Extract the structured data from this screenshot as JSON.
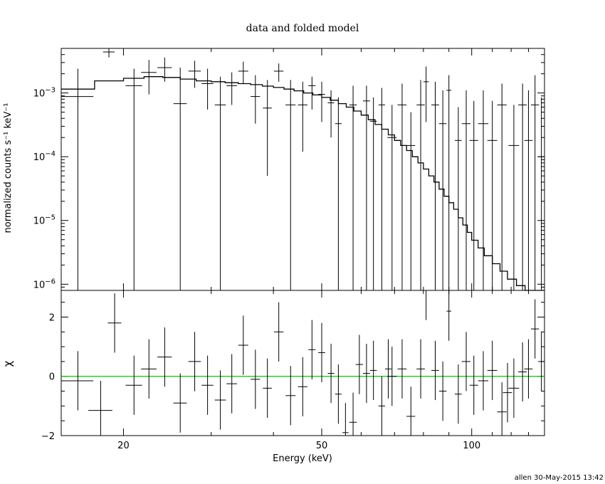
{
  "chart_data": [
    {
      "type": "line",
      "title": "data and folded model",
      "ylabel": "normalized counts s⁻¹ keV⁻¹",
      "xlabel": "",
      "xscale": "log",
      "yscale": "log",
      "xlim": [
        15,
        140
      ],
      "ylim": [
        8e-07,
        0.005
      ],
      "yticks": [
        {
          "value": 0.001,
          "base": "10",
          "exp": "−3"
        },
        {
          "value": 0.0001,
          "base": "10",
          "exp": "−4"
        },
        {
          "value": 1e-05,
          "base": "10",
          "exp": "−5"
        },
        {
          "value": 1e-06,
          "base": "10",
          "exp": "−6"
        }
      ],
      "model_steps": [
        [
          15.0,
          17.5,
          0.00115
        ],
        [
          17.5,
          20.0,
          0.00155
        ],
        [
          20.0,
          22.0,
          0.0017
        ],
        [
          22.0,
          24.0,
          0.0018
        ],
        [
          24.0,
          26.0,
          0.00175
        ],
        [
          26.0,
          28.0,
          0.00165
        ],
        [
          28.0,
          30.0,
          0.00155
        ],
        [
          30.0,
          32.0,
          0.0015
        ],
        [
          32.0,
          34.0,
          0.00145
        ],
        [
          34.0,
          36.0,
          0.0014
        ],
        [
          36.0,
          38.0,
          0.00135
        ],
        [
          38.0,
          40.0,
          0.00128
        ],
        [
          40.0,
          42.0,
          0.00122
        ],
        [
          42.0,
          44.0,
          0.00115
        ],
        [
          44.0,
          46.0,
          0.00108
        ],
        [
          46.0,
          48.0,
          0.001
        ],
        [
          48.0,
          50.0,
          0.00093
        ],
        [
          50.0,
          52.0,
          0.00085
        ],
        [
          52.0,
          54.0,
          0.00077
        ],
        [
          54.0,
          56.0,
          0.00068
        ],
        [
          56.0,
          58.0,
          0.0006
        ],
        [
          58.0,
          60.0,
          0.00052
        ],
        [
          60.0,
          62.0,
          0.00045
        ],
        [
          62.0,
          64.0,
          0.00038
        ],
        [
          64.0,
          66.0,
          0.00032
        ],
        [
          66.0,
          68.0,
          0.00027
        ],
        [
          68.0,
          70.0,
          0.00022
        ],
        [
          70.0,
          72.0,
          0.00018
        ],
        [
          72.0,
          74.0,
          0.00015
        ],
        [
          74.0,
          76.0,
          0.000125
        ],
        [
          76.0,
          78.0,
          0.0001
        ],
        [
          78.0,
          80.0,
          8e-05
        ],
        [
          80.0,
          82.0,
          6.4e-05
        ],
        [
          82.0,
          84.0,
          5e-05
        ],
        [
          84.0,
          86.0,
          4e-05
        ],
        [
          86.0,
          88.0,
          3.1e-05
        ],
        [
          88.0,
          90.0,
          2.4e-05
        ],
        [
          90.0,
          92.0,
          1.9e-05
        ],
        [
          92.0,
          94.0,
          1.5e-05
        ],
        [
          94.0,
          96.0,
          1.1e-05
        ],
        [
          96.0,
          98.0,
          8.5e-06
        ],
        [
          98.0,
          100.0,
          6.5e-06
        ],
        [
          100.0,
          103.0,
          4.9e-06
        ],
        [
          103.0,
          106.0,
          3.7e-06
        ],
        [
          106.0,
          110.0,
          2.8e-06
        ],
        [
          110.0,
          114.0,
          2.1e-06
        ],
        [
          114.0,
          118.0,
          1.6e-06
        ],
        [
          118.0,
          123.0,
          1.2e-06
        ],
        [
          123.0,
          128.0,
          9.5e-07
        ],
        [
          128.0,
          134.0,
          8e-07
        ],
        [
          134.0,
          140.0,
          8e-07
        ]
      ],
      "data_points": [
        {
          "x": 16.2,
          "dx": 1.2,
          "y": 0.00088,
          "yhi": 0.0024,
          "ylo": 8e-07
        },
        {
          "x": 18.7,
          "dx": 0.5,
          "y": 0.0044,
          "yhi": 0.0055,
          "ylo": 0.0036
        },
        {
          "x": 21.0,
          "dx": 0.8,
          "y": 0.0013,
          "yhi": 0.0024,
          "ylo": 8e-07
        },
        {
          "x": 22.5,
          "dx": 0.8,
          "y": 0.0021,
          "yhi": 0.0033,
          "ylo": 0.00095
        },
        {
          "x": 24.2,
          "dx": 0.8,
          "y": 0.0025,
          "yhi": 0.0036,
          "ylo": 0.0015
        },
        {
          "x": 26.0,
          "dx": 0.8,
          "y": 0.00068,
          "yhi": 0.0025,
          "ylo": 8e-07
        },
        {
          "x": 27.8,
          "dx": 0.8,
          "y": 0.0022,
          "yhi": 0.0032,
          "ylo": 0.0012
        },
        {
          "x": 29.5,
          "dx": 0.8,
          "y": 0.0014,
          "yhi": 0.0024,
          "ylo": 0.00055
        },
        {
          "x": 31.3,
          "dx": 0.8,
          "y": 0.00065,
          "yhi": 0.0018,
          "ylo": 8e-07
        },
        {
          "x": 33.0,
          "dx": 0.8,
          "y": 0.0013,
          "yhi": 0.0021,
          "ylo": 0.00065
        },
        {
          "x": 34.8,
          "dx": 0.8,
          "y": 0.0022,
          "yhi": 0.0031,
          "ylo": 0.0014
        },
        {
          "x": 36.8,
          "dx": 0.8,
          "y": 0.00088,
          "yhi": 0.0019,
          "ylo": 0.00033
        },
        {
          "x": 38.9,
          "dx": 0.8,
          "y": 0.00058,
          "yhi": 0.0016,
          "ylo": 5e-05
        },
        {
          "x": 41.0,
          "dx": 0.9,
          "y": 0.0022,
          "yhi": 0.0029,
          "ylo": 0.0015
        },
        {
          "x": 43.3,
          "dx": 1.0,
          "y": 0.00065,
          "yhi": 0.0016,
          "ylo": 8e-07
        },
        {
          "x": 45.8,
          "dx": 1.0,
          "y": 0.00065,
          "yhi": 0.0015,
          "ylo": 0.00012
        },
        {
          "x": 47.8,
          "dx": 0.8,
          "y": 0.0013,
          "yhi": 0.0018,
          "ylo": 0.00055
        },
        {
          "x": 50.0,
          "dx": 0.8,
          "y": 0.00095,
          "yhi": 0.0015,
          "ylo": 0.00035
        },
        {
          "x": 52.2,
          "dx": 0.8,
          "y": 0.0007,
          "yhi": 0.0011,
          "ylo": 0.0002
        },
        {
          "x": 54.0,
          "dx": 0.8,
          "y": 0.00033,
          "yhi": 0.00085,
          "ylo": 8e-07
        },
        {
          "x": 57.8,
          "dx": 1.0,
          "y": 0.00065,
          "yhi": 0.0013,
          "ylo": 8e-07
        },
        {
          "x": 61.5,
          "dx": 1.0,
          "y": 0.00075,
          "yhi": 0.0013,
          "ylo": 8e-07
        },
        {
          "x": 63.5,
          "dx": 1.0,
          "y": 0.00036,
          "yhi": 0.00085,
          "ylo": 8e-07
        },
        {
          "x": 66.0,
          "dx": 1.0,
          "y": 0.00065,
          "yhi": 0.0012,
          "ylo": 8e-07
        },
        {
          "x": 69.2,
          "dx": 1.5,
          "y": 0.0002,
          "yhi": 0.00065,
          "ylo": 8e-07
        },
        {
          "x": 72.5,
          "dx": 1.5,
          "y": 0.00065,
          "yhi": 0.0014,
          "ylo": 8e-07
        },
        {
          "x": 75.5,
          "dx": 1.5,
          "y": 0.00015,
          "yhi": 0.0005,
          "ylo": 8e-07
        },
        {
          "x": 79.0,
          "dx": 1.5,
          "y": 0.00065,
          "yhi": 0.0016,
          "ylo": 8e-07
        },
        {
          "x": 81.0,
          "dx": 1.0,
          "y": 0.0015,
          "yhi": 0.0026,
          "ylo": 0.00035
        },
        {
          "x": 84.5,
          "dx": 1.5,
          "y": 0.00065,
          "yhi": 0.0015,
          "ylo": 8e-07
        },
        {
          "x": 87.5,
          "dx": 1.5,
          "y": 0.00033,
          "yhi": 0.0011,
          "ylo": 8e-07
        },
        {
          "x": 90.0,
          "dx": 1.0,
          "y": 0.0011,
          "yhi": 0.0019,
          "ylo": 8e-07
        },
        {
          "x": 94.0,
          "dx": 1.5,
          "y": 0.00018,
          "yhi": 0.0006,
          "ylo": 8e-07
        },
        {
          "x": 97.5,
          "dx": 2.0,
          "y": 0.00033,
          "yhi": 0.0011,
          "ylo": 8e-07
        },
        {
          "x": 101.0,
          "dx": 2.0,
          "y": 0.00018,
          "yhi": 0.00075,
          "ylo": 8e-07
        },
        {
          "x": 105.5,
          "dx": 2.5,
          "y": 0.00033,
          "yhi": 0.0011,
          "ylo": 8e-07
        },
        {
          "x": 110.0,
          "dx": 2.5,
          "y": 0.00018,
          "yhi": 0.00075,
          "ylo": 8e-07
        },
        {
          "x": 115.0,
          "dx": 2.5,
          "y": 0.00065,
          "yhi": 0.0014,
          "ylo": 8e-07
        },
        {
          "x": 121.5,
          "dx": 3.0,
          "y": 0.00015,
          "yhi": 0.00065,
          "ylo": 8e-07
        },
        {
          "x": 126.5,
          "dx": 2.5,
          "y": 0.00065,
          "yhi": 0.0014,
          "ylo": 8e-07
        },
        {
          "x": 130.0,
          "dx": 2.5,
          "y": 0.00018,
          "yhi": 0.0011,
          "ylo": 8e-07
        },
        {
          "x": 134.0,
          "dx": 2.5,
          "y": 0.00065,
          "yhi": 0.0019,
          "ylo": 8e-07
        },
        {
          "x": 138.0,
          "dx": 2.0,
          "y": 0.0001,
          "yhi": 0.00085,
          "ylo": 8e-07
        }
      ],
      "grid": false,
      "colors": {
        "data": "#000000",
        "model": "#000000"
      }
    },
    {
      "type": "line",
      "title": "",
      "ylabel": "χ",
      "xlabel": "Energy (keV)",
      "xscale": "log",
      "xlim": [
        15,
        140
      ],
      "ylim": [
        -2.0,
        2.9
      ],
      "yticks": [
        {
          "value": 2,
          "label": "2"
        },
        {
          "value": 0,
          "label": "0"
        },
        {
          "value": -2,
          "label": "−2"
        }
      ],
      "xticks": [
        {
          "value": 20,
          "label": "20"
        },
        {
          "value": 50,
          "label": "50"
        },
        {
          "value": 100,
          "label": "100"
        }
      ],
      "zero_line_color": "#00cc00",
      "residuals": [
        {
          "x": 16.2,
          "dx": 1.2,
          "y": -0.15,
          "err": 1.0
        },
        {
          "x": 18.0,
          "dx": 1.0,
          "y": -1.15,
          "err": 1.0
        },
        {
          "x": 19.2,
          "dx": 0.6,
          "y": 1.8,
          "err": 1.0
        },
        {
          "x": 21.0,
          "dx": 0.8,
          "y": -0.3,
          "err": 1.0
        },
        {
          "x": 22.5,
          "dx": 0.8,
          "y": 0.25,
          "err": 1.0
        },
        {
          "x": 24.2,
          "dx": 0.8,
          "y": 0.65,
          "err": 1.0
        },
        {
          "x": 26.0,
          "dx": 0.8,
          "y": -0.9,
          "err": 1.0
        },
        {
          "x": 27.8,
          "dx": 0.8,
          "y": 0.5,
          "err": 1.0
        },
        {
          "x": 29.5,
          "dx": 0.8,
          "y": -0.3,
          "err": 1.0
        },
        {
          "x": 31.3,
          "dx": 0.8,
          "y": -0.8,
          "err": 1.0
        },
        {
          "x": 33.0,
          "dx": 0.8,
          "y": -0.25,
          "err": 1.0
        },
        {
          "x": 34.8,
          "dx": 0.8,
          "y": 1.05,
          "err": 1.0
        },
        {
          "x": 36.8,
          "dx": 0.8,
          "y": -0.1,
          "err": 1.0
        },
        {
          "x": 38.9,
          "dx": 0.8,
          "y": -0.4,
          "err": 1.0
        },
        {
          "x": 41.0,
          "dx": 0.9,
          "y": 1.5,
          "err": 1.0
        },
        {
          "x": 43.3,
          "dx": 1.0,
          "y": -0.65,
          "err": 1.0
        },
        {
          "x": 45.8,
          "dx": 1.0,
          "y": -0.35,
          "err": 1.0
        },
        {
          "x": 47.8,
          "dx": 0.8,
          "y": 0.9,
          "err": 1.0
        },
        {
          "x": 50.0,
          "dx": 0.8,
          "y": 0.8,
          "err": 1.0
        },
        {
          "x": 52.2,
          "dx": 0.8,
          "y": 0.1,
          "err": 1.0
        },
        {
          "x": 54.0,
          "dx": 0.8,
          "y": -0.6,
          "err": 1.0
        },
        {
          "x": 55.8,
          "dx": 0.8,
          "y": -1.9,
          "err": 1.0
        },
        {
          "x": 57.8,
          "dx": 1.0,
          "y": -1.55,
          "err": 1.0
        },
        {
          "x": 59.5,
          "dx": 1.0,
          "y": 0.4,
          "err": 1.0
        },
        {
          "x": 61.5,
          "dx": 1.0,
          "y": 0.1,
          "err": 1.0
        },
        {
          "x": 63.5,
          "dx": 1.0,
          "y": 0.2,
          "err": 1.0
        },
        {
          "x": 66.0,
          "dx": 1.0,
          "y": -1.0,
          "err": 1.0
        },
        {
          "x": 68.0,
          "dx": 1.0,
          "y": 0.25,
          "err": 1.0
        },
        {
          "x": 69.2,
          "dx": 1.5,
          "y": 0.0,
          "err": 1.0
        },
        {
          "x": 72.5,
          "dx": 1.5,
          "y": 0.25,
          "err": 1.0
        },
        {
          "x": 75.5,
          "dx": 1.5,
          "y": -1.35,
          "err": 1.0
        },
        {
          "x": 79.0,
          "dx": 1.5,
          "y": 0.25,
          "err": 1.0
        },
        {
          "x": 81.0,
          "dx": 1.0,
          "y": 2.9,
          "err": 1.0
        },
        {
          "x": 84.5,
          "dx": 1.5,
          "y": 0.2,
          "err": 1.0
        },
        {
          "x": 87.5,
          "dx": 1.5,
          "y": -0.5,
          "err": 1.0
        },
        {
          "x": 90.0,
          "dx": 1.0,
          "y": 2.2,
          "err": 1.0
        },
        {
          "x": 94.0,
          "dx": 1.5,
          "y": -0.6,
          "err": 1.0
        },
        {
          "x": 97.5,
          "dx": 2.0,
          "y": 0.5,
          "err": 1.0
        },
        {
          "x": 101.0,
          "dx": 2.0,
          "y": -0.3,
          "err": 1.0
        },
        {
          "x": 105.5,
          "dx": 2.5,
          "y": -0.15,
          "err": 1.0
        },
        {
          "x": 110.0,
          "dx": 2.5,
          "y": 0.2,
          "err": 1.0
        },
        {
          "x": 115.0,
          "dx": 2.5,
          "y": -1.2,
          "err": 1.0
        },
        {
          "x": 118.0,
          "dx": 2.5,
          "y": -0.55,
          "err": 1.0
        },
        {
          "x": 121.5,
          "dx": 3.0,
          "y": -0.4,
          "err": 1.0
        },
        {
          "x": 126.5,
          "dx": 2.5,
          "y": 0.15,
          "err": 1.0
        },
        {
          "x": 130.0,
          "dx": 2.5,
          "y": 0.25,
          "err": 1.0
        },
        {
          "x": 134.0,
          "dx": 2.5,
          "y": 1.6,
          "err": 1.0
        },
        {
          "x": 138.0,
          "dx": 2.0,
          "y": 0.5,
          "err": 1.0
        }
      ],
      "grid": false
    }
  ],
  "footer": {
    "stamp": "allen 30-May-2015 13:42"
  }
}
